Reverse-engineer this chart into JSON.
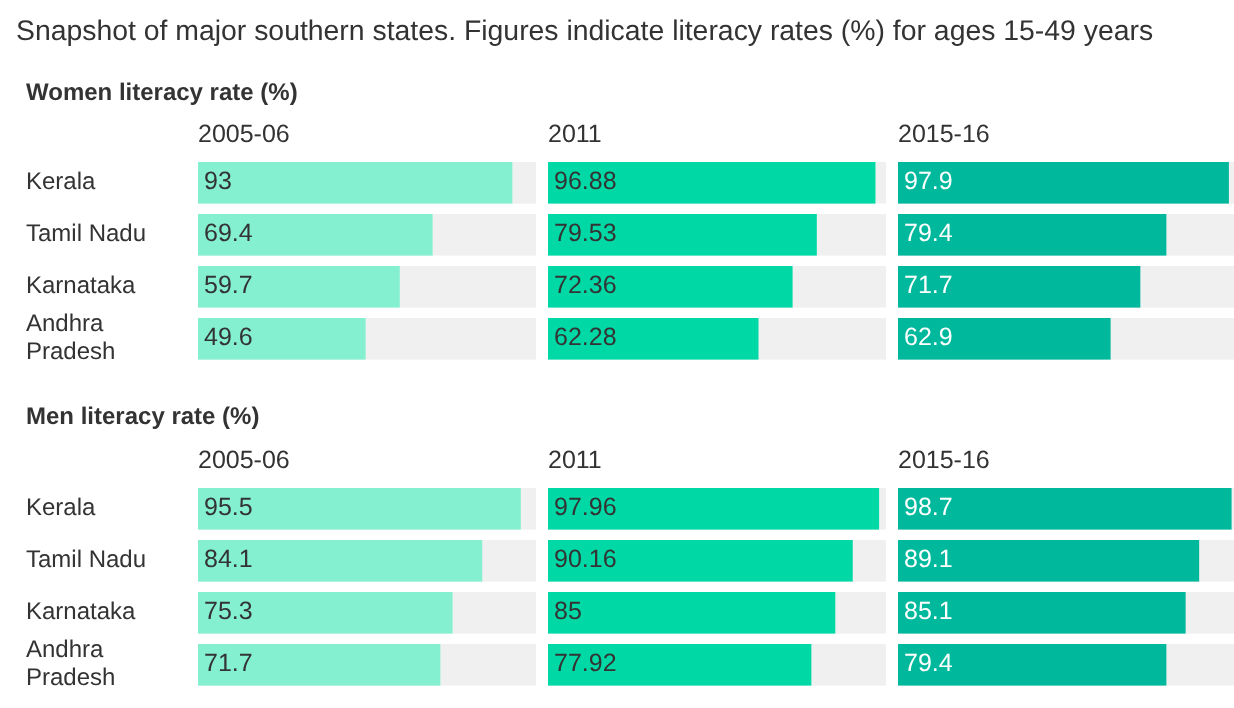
{
  "chart_data": [
    {
      "type": "bar",
      "orientation": "horizontal",
      "title": "Snapshot of major southern states. Figures indicate literacy rates (%) for ages 15-49 years",
      "subtitle": "Women literacy rate (%)",
      "xlabel": "2005-06",
      "categories": [
        "Kerala",
        "Tamil Nadu",
        "Karnataka",
        "Andhra Pradesh"
      ],
      "values": [
        93,
        69.4,
        59.7,
        49.6
      ],
      "color": "#84f0d0",
      "xlim": [
        0,
        100
      ],
      "data_labels": true,
      "tick_labels": "y"
    },
    {
      "type": "bar",
      "orientation": "horizontal",
      "xlabel": "2011",
      "categories": [
        null,
        null,
        null,
        null
      ],
      "values": [
        96.88,
        79.53,
        72.36,
        62.28
      ],
      "color": "#00d9a6",
      "xlim": [
        0,
        100
      ],
      "data_labels": true
    },
    {
      "type": "bar",
      "orientation": "horizontal",
      "xlabel": "2015-16",
      "categories": [
        null,
        null,
        null,
        null
      ],
      "values": [
        97.9,
        79.4,
        71.7,
        62.9
      ],
      "color": "#00b89c",
      "xlim": [
        0,
        100
      ],
      "data_labels": true
    },
    {
      "type": "bar",
      "orientation": "horizontal",
      "subtitle": "Men literacy rate (%)",
      "xlabel": "2005-06",
      "categories": [
        "Kerala",
        "Tamil Nadu",
        "Karnataka",
        "Andhra Pradesh"
      ],
      "values": [
        95.5,
        84.1,
        75.3,
        71.7
      ],
      "color": "#84f0d0",
      "xlim": [
        0,
        100
      ],
      "data_labels": true,
      "tick_labels": "y"
    },
    {
      "type": "bar",
      "orientation": "horizontal",
      "xlabel": "2011",
      "categories": [
        null,
        null,
        null,
        null
      ],
      "values": [
        97.96,
        90.16,
        85,
        77.92
      ],
      "color": "#00d9a6",
      "xlim": [
        0,
        100
      ],
      "data_labels": true
    },
    {
      "type": "bar",
      "orientation": "horizontal",
      "xlabel": "2015-16",
      "categories": [
        null,
        null,
        null,
        null
      ],
      "values": [
        98.7,
        89.1,
        85.1,
        79.4
      ],
      "color": "#00b89c",
      "xlim": [
        0,
        100
      ],
      "data_labels": true
    }
  ]
}
